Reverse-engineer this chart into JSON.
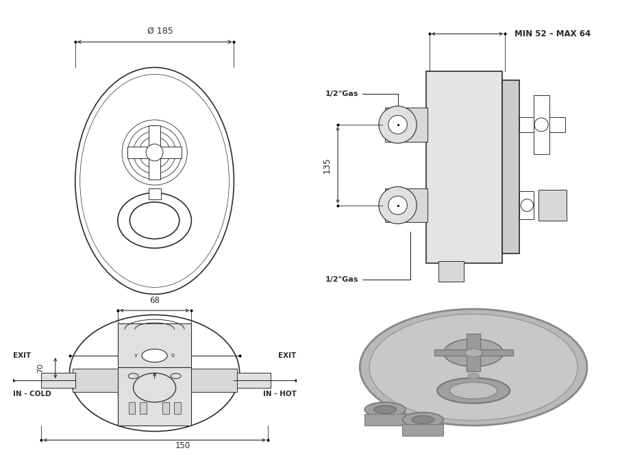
{
  "bg_color": "#ffffff",
  "line_color": "#2a2a2a",
  "dim_color": "#2a2a2a",
  "top_left": {
    "dim_label": "Ø 185"
  },
  "top_right": {
    "dim_top": "MIN 52 – MAX 64",
    "dim_height": "135",
    "gas_top": "1/2\"Gas",
    "gas_bottom": "1/2\"Gas"
  },
  "bottom_left": {
    "dim_top": "68",
    "dim_bottom": "150",
    "dim_mid": "70",
    "labels": {
      "exit_left": "EXIT",
      "exit_right": "EXIT",
      "in_cold": "IN - COLD",
      "in_hot": "IN - HOT"
    }
  }
}
